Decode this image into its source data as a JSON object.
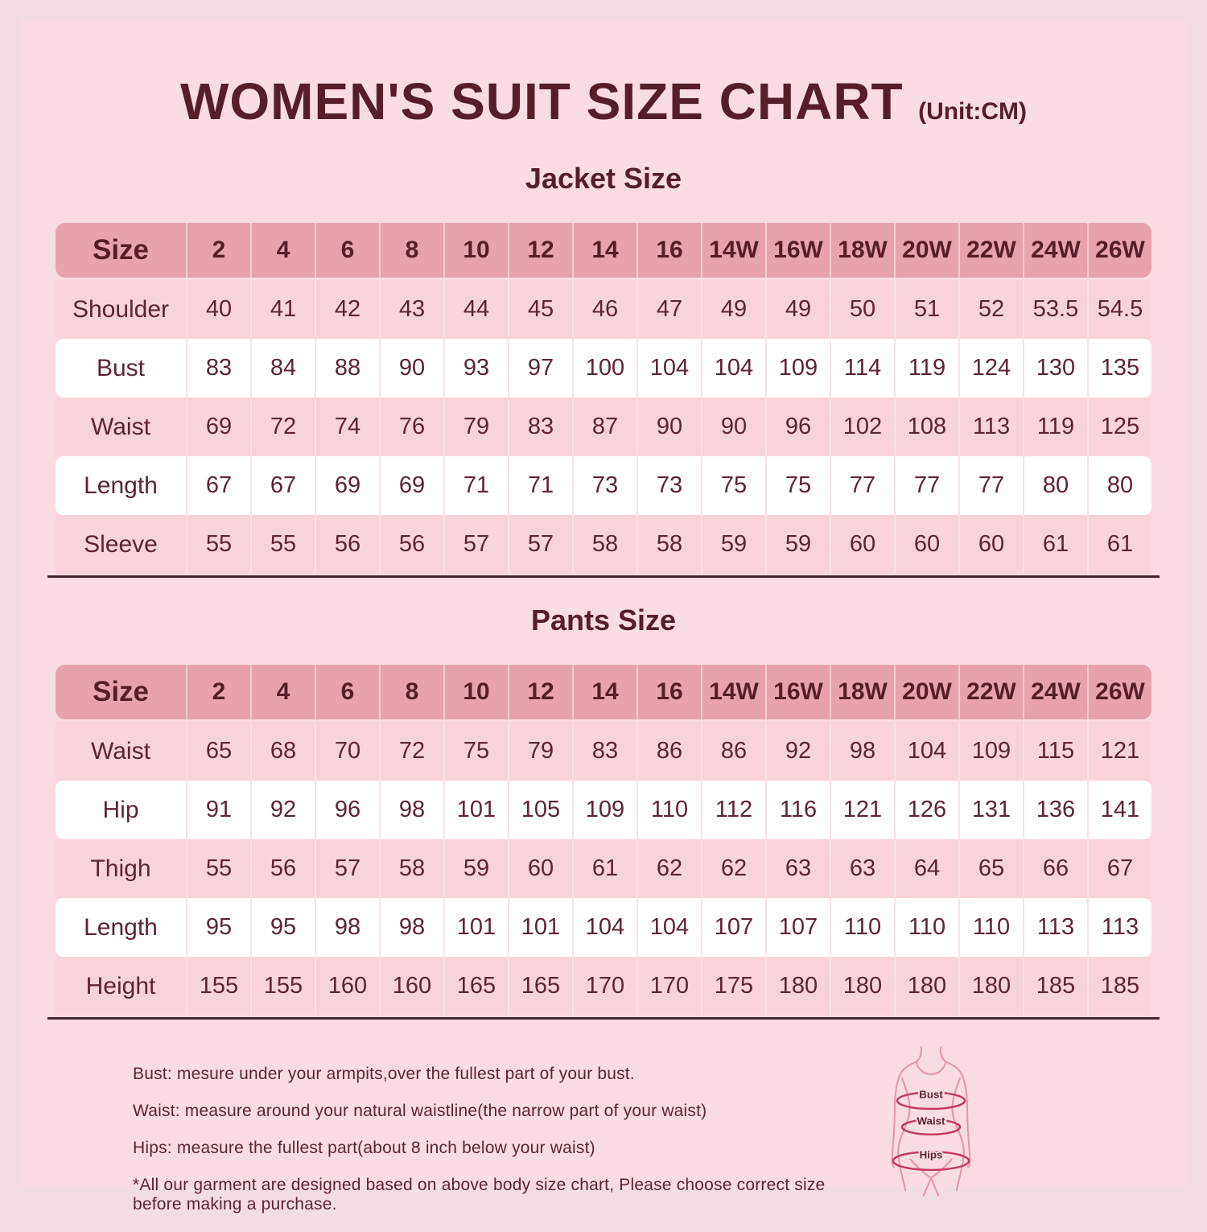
{
  "page": {
    "title": "WOMEN'S SUIT SIZE CHART",
    "unit": "(Unit:CM)"
  },
  "colors": {
    "outer_background": "#f4dde2",
    "panel_background": "#fadce2",
    "header_row": "#e8a2ae",
    "pink_row": "#f8d3d9",
    "white_row": "#ffffff",
    "text": "#5e2431",
    "title_text": "#571e2a",
    "divider_line": "#45252e",
    "figure_outline": "#e795a6",
    "figure_band": "#c23b5f"
  },
  "jacket": {
    "heading": "Jacket Size",
    "columns": [
      "Size",
      "2",
      "4",
      "6",
      "8",
      "10",
      "12",
      "14",
      "16",
      "14W",
      "16W",
      "18W",
      "20W",
      "22W",
      "24W",
      "26W"
    ],
    "rows": [
      {
        "label": "Shoulder",
        "values": [
          "40",
          "41",
          "42",
          "43",
          "44",
          "45",
          "46",
          "47",
          "49",
          "49",
          "50",
          "51",
          "52",
          "53.5",
          "54.5"
        ]
      },
      {
        "label": "Bust",
        "values": [
          "83",
          "84",
          "88",
          "90",
          "93",
          "97",
          "100",
          "104",
          "104",
          "109",
          "114",
          "119",
          "124",
          "130",
          "135"
        ]
      },
      {
        "label": "Waist",
        "values": [
          "69",
          "72",
          "74",
          "76",
          "79",
          "83",
          "87",
          "90",
          "90",
          "96",
          "102",
          "108",
          "113",
          "119",
          "125"
        ]
      },
      {
        "label": "Length",
        "values": [
          "67",
          "67",
          "69",
          "69",
          "71",
          "71",
          "73",
          "73",
          "75",
          "75",
          "77",
          "77",
          "77",
          "80",
          "80"
        ]
      },
      {
        "label": "Sleeve",
        "values": [
          "55",
          "55",
          "56",
          "56",
          "57",
          "57",
          "58",
          "58",
          "59",
          "59",
          "60",
          "60",
          "60",
          "61",
          "61"
        ]
      }
    ]
  },
  "pants": {
    "heading": "Pants Size",
    "columns": [
      "Size",
      "2",
      "4",
      "6",
      "8",
      "10",
      "12",
      "14",
      "16",
      "14W",
      "16W",
      "18W",
      "20W",
      "22W",
      "24W",
      "26W"
    ],
    "rows": [
      {
        "label": "Waist",
        "values": [
          "65",
          "68",
          "70",
          "72",
          "75",
          "79",
          "83",
          "86",
          "86",
          "92",
          "98",
          "104",
          "109",
          "115",
          "121"
        ]
      },
      {
        "label": "Hip",
        "values": [
          "91",
          "92",
          "96",
          "98",
          "101",
          "105",
          "109",
          "110",
          "112",
          "116",
          "121",
          "126",
          "131",
          "136",
          "141"
        ]
      },
      {
        "label": "Thigh",
        "values": [
          "55",
          "56",
          "57",
          "58",
          "59",
          "60",
          "61",
          "62",
          "62",
          "63",
          "63",
          "64",
          "65",
          "66",
          "67"
        ]
      },
      {
        "label": "Length",
        "values": [
          "95",
          "95",
          "98",
          "98",
          "101",
          "101",
          "104",
          "104",
          "107",
          "107",
          "110",
          "110",
          "110",
          "113",
          "113"
        ]
      },
      {
        "label": "Height",
        "values": [
          "155",
          "155",
          "160",
          "160",
          "165",
          "165",
          "170",
          "170",
          "175",
          "180",
          "180",
          "180",
          "180",
          "185",
          "185"
        ]
      }
    ]
  },
  "notes": [
    "Bust: mesure under your armpits,over the fullest part of your bust.",
    "Waist: measure around your natural waistline(the narrow part of your waist)",
    "Hips: measure the fullest part(about 8 inch below your waist)",
    "*All our garment are designed based on above body size chart, Please choose correct size before making a purchase."
  ],
  "figure": {
    "labels": [
      "Bust",
      "Waist",
      "Hips"
    ]
  },
  "chart_data": [
    {
      "type": "table",
      "title": "Jacket Size",
      "unit": "CM",
      "columns": [
        "Size",
        "2",
        "4",
        "6",
        "8",
        "10",
        "12",
        "14",
        "16",
        "14W",
        "16W",
        "18W",
        "20W",
        "22W",
        "24W",
        "26W"
      ],
      "rows": [
        [
          "Shoulder",
          40,
          41,
          42,
          43,
          44,
          45,
          46,
          47,
          49,
          49,
          50,
          51,
          52,
          53.5,
          54.5
        ],
        [
          "Bust",
          83,
          84,
          88,
          90,
          93,
          97,
          100,
          104,
          104,
          109,
          114,
          119,
          124,
          130,
          135
        ],
        [
          "Waist",
          69,
          72,
          74,
          76,
          79,
          83,
          87,
          90,
          90,
          96,
          102,
          108,
          113,
          119,
          125
        ],
        [
          "Length",
          67,
          67,
          69,
          69,
          71,
          71,
          73,
          73,
          75,
          75,
          77,
          77,
          77,
          80,
          80
        ],
        [
          "Sleeve",
          55,
          55,
          56,
          56,
          57,
          57,
          58,
          58,
          59,
          59,
          60,
          60,
          60,
          61,
          61
        ]
      ]
    },
    {
      "type": "table",
      "title": "Pants Size",
      "unit": "CM",
      "columns": [
        "Size",
        "2",
        "4",
        "6",
        "8",
        "10",
        "12",
        "14",
        "16",
        "14W",
        "16W",
        "18W",
        "20W",
        "22W",
        "24W",
        "26W"
      ],
      "rows": [
        [
          "Waist",
          65,
          68,
          70,
          72,
          75,
          79,
          83,
          86,
          86,
          92,
          98,
          104,
          109,
          115,
          121
        ],
        [
          "Hip",
          91,
          92,
          96,
          98,
          101,
          105,
          109,
          110,
          112,
          116,
          121,
          126,
          131,
          136,
          141
        ],
        [
          "Thigh",
          55,
          56,
          57,
          58,
          59,
          60,
          61,
          62,
          62,
          63,
          63,
          64,
          65,
          66,
          67
        ],
        [
          "Length",
          95,
          95,
          98,
          98,
          101,
          101,
          104,
          104,
          107,
          107,
          110,
          110,
          110,
          113,
          113
        ],
        [
          "Height",
          155,
          155,
          160,
          160,
          165,
          165,
          170,
          170,
          175,
          180,
          180,
          180,
          180,
          185,
          185
        ]
      ]
    }
  ]
}
